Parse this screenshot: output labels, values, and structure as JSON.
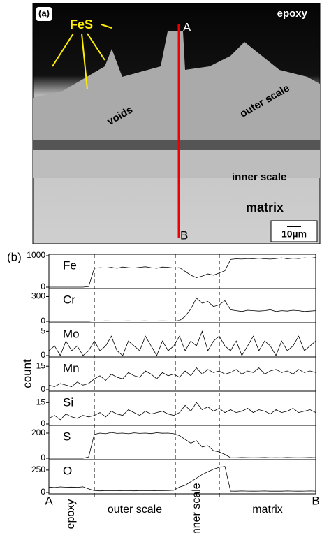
{
  "panel_a": {
    "label": "(a)",
    "medium": "epoxy",
    "phase": "FeS",
    "point_start": "A",
    "point_end": "B",
    "voids": "voids",
    "outer": "outer scale",
    "inner": "inner scale",
    "matrix": "matrix",
    "scale_bar": "10µm"
  },
  "panel_b": {
    "label": "(b)",
    "ylabel": "count",
    "x_start": "A",
    "x_end": "B",
    "regions": [
      "epoxy",
      "outer scale",
      "inner scale",
      "matrix"
    ]
  },
  "chart_data": [
    {
      "type": "line",
      "title": "Fe",
      "color": "#000000",
      "ylim": [
        0,
        1000
      ],
      "yticks": [
        0,
        1000
      ],
      "values": [
        0,
        0,
        0,
        0,
        0,
        0,
        0,
        20,
        600,
        620,
        610,
        630,
        600,
        640,
        620,
        610,
        630,
        650,
        620,
        600,
        640,
        630,
        610,
        620,
        500,
        380,
        300,
        350,
        420,
        380,
        450,
        520,
        880,
        900,
        890,
        910,
        900,
        920,
        900,
        890,
        910,
        930,
        900,
        920,
        910,
        930,
        920,
        940
      ]
    },
    {
      "type": "line",
      "title": "Cr",
      "color": "#000000",
      "ylim": [
        0,
        380
      ],
      "yticks": [
        0,
        300
      ],
      "values": [
        0,
        0,
        0,
        0,
        0,
        0,
        0,
        0,
        5,
        4,
        6,
        5,
        3,
        5,
        6,
        4,
        5,
        6,
        4,
        5,
        6,
        5,
        4,
        10,
        60,
        150,
        280,
        220,
        240,
        180,
        200,
        250,
        140,
        130,
        120,
        135,
        130,
        125,
        130,
        140,
        120,
        130,
        125,
        135,
        130,
        120,
        125,
        130
      ]
    },
    {
      "type": "line",
      "title": "Mo",
      "color": "#000000",
      "ylim": [
        0,
        6.5
      ],
      "yticks": [
        0,
        5
      ],
      "values": [
        1,
        2,
        0,
        3,
        1,
        2,
        0,
        1,
        3,
        1,
        2,
        4,
        1,
        0,
        3,
        2,
        1,
        4,
        2,
        0,
        3,
        1,
        2,
        4,
        1,
        3,
        2,
        5,
        1,
        3,
        4,
        2,
        1,
        3,
        0,
        2,
        4,
        1,
        3,
        2,
        0,
        3,
        1,
        2,
        4,
        1,
        2,
        3
      ]
    },
    {
      "type": "line",
      "title": "Mn",
      "color": "#000000",
      "ylim": [
        0,
        20
      ],
      "yticks": [
        0,
        15
      ],
      "values": [
        3,
        2,
        4,
        3,
        2,
        5,
        3,
        4,
        7,
        9,
        6,
        10,
        8,
        7,
        11,
        9,
        8,
        12,
        10,
        7,
        11,
        9,
        10,
        8,
        12,
        9,
        14,
        10,
        13,
        11,
        12,
        10,
        11,
        13,
        10,
        12,
        11,
        14,
        10,
        12,
        13,
        11,
        12,
        10,
        13,
        11,
        12,
        11
      ]
    },
    {
      "type": "line",
      "title": "Si",
      "color": "#000000",
      "ylim": [
        0,
        22
      ],
      "yticks": [
        0,
        15
      ],
      "values": [
        4,
        6,
        3,
        7,
        5,
        4,
        6,
        5,
        6,
        8,
        5,
        9,
        7,
        6,
        10,
        8,
        6,
        9,
        7,
        8,
        9,
        7,
        6,
        8,
        13,
        9,
        15,
        10,
        12,
        9,
        11,
        8,
        10,
        8,
        9,
        11,
        8,
        10,
        9,
        7,
        10,
        8,
        9,
        11,
        8,
        9,
        10,
        8
      ]
    },
    {
      "type": "line",
      "title": "S",
      "color": "#000000",
      "ylim": [
        0,
        250
      ],
      "yticks": [
        0,
        200
      ],
      "values": [
        0,
        0,
        0,
        0,
        0,
        0,
        0,
        10,
        190,
        200,
        195,
        205,
        198,
        200,
        195,
        202,
        198,
        200,
        196,
        203,
        199,
        200,
        195,
        180,
        150,
        120,
        140,
        90,
        100,
        60,
        50,
        30,
        5,
        4,
        6,
        5,
        4,
        5,
        6,
        4,
        5,
        4,
        6,
        5,
        4,
        5,
        6,
        5
      ]
    },
    {
      "type": "line",
      "title": "O",
      "color": "#000000",
      "ylim": [
        0,
        350
      ],
      "yticks": [
        0,
        250
      ],
      "values": [
        60,
        55,
        62,
        58,
        60,
        57,
        63,
        40,
        20,
        18,
        22,
        20,
        19,
        21,
        20,
        18,
        22,
        20,
        19,
        21,
        20,
        22,
        25,
        60,
        80,
        120,
        160,
        200,
        230,
        260,
        280,
        290,
        15,
        14,
        16,
        15,
        14,
        15,
        16,
        14,
        15,
        14,
        16,
        15,
        14,
        15,
        16,
        15
      ]
    }
  ]
}
